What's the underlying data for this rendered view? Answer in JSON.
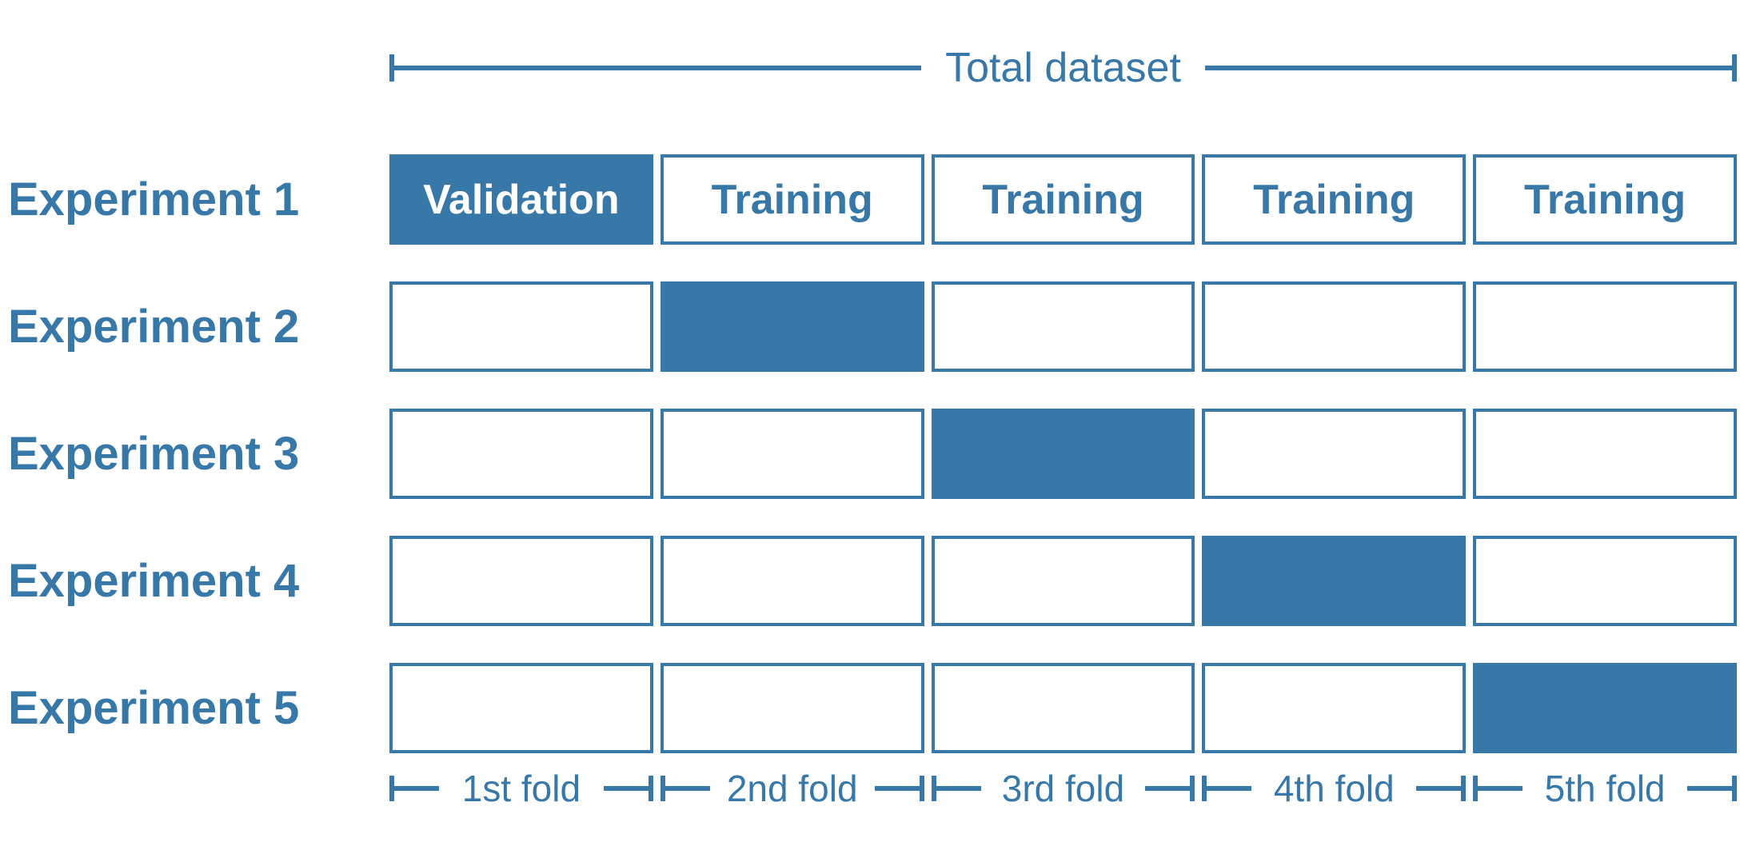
{
  "accent_color": "#3778A8",
  "total_bracket": {
    "label": "Total dataset"
  },
  "experiments": [
    {
      "label": "Experiment 1",
      "cells": [
        {
          "text": "Validation",
          "filled": true
        },
        {
          "text": "Training",
          "filled": false
        },
        {
          "text": "Training",
          "filled": false
        },
        {
          "text": "Training",
          "filled": false
        },
        {
          "text": "Training",
          "filled": false
        }
      ]
    },
    {
      "label": "Experiment 2",
      "cells": [
        {
          "text": "",
          "filled": false
        },
        {
          "text": "",
          "filled": true
        },
        {
          "text": "",
          "filled": false
        },
        {
          "text": "",
          "filled": false
        },
        {
          "text": "",
          "filled": false
        }
      ]
    },
    {
      "label": "Experiment 3",
      "cells": [
        {
          "text": "",
          "filled": false
        },
        {
          "text": "",
          "filled": false
        },
        {
          "text": "",
          "filled": true
        },
        {
          "text": "",
          "filled": false
        },
        {
          "text": "",
          "filled": false
        }
      ]
    },
    {
      "label": "Experiment 4",
      "cells": [
        {
          "text": "",
          "filled": false
        },
        {
          "text": "",
          "filled": false
        },
        {
          "text": "",
          "filled": false
        },
        {
          "text": "",
          "filled": true
        },
        {
          "text": "",
          "filled": false
        }
      ]
    },
    {
      "label": "Experiment 5",
      "cells": [
        {
          "text": "",
          "filled": false
        },
        {
          "text": "",
          "filled": false
        },
        {
          "text": "",
          "filled": false
        },
        {
          "text": "",
          "filled": false
        },
        {
          "text": "",
          "filled": true
        }
      ]
    }
  ],
  "folds": [
    {
      "label": "1st fold"
    },
    {
      "label": "2nd fold"
    },
    {
      "label": "3rd fold"
    },
    {
      "label": "4th fold"
    },
    {
      "label": "5th fold"
    }
  ]
}
